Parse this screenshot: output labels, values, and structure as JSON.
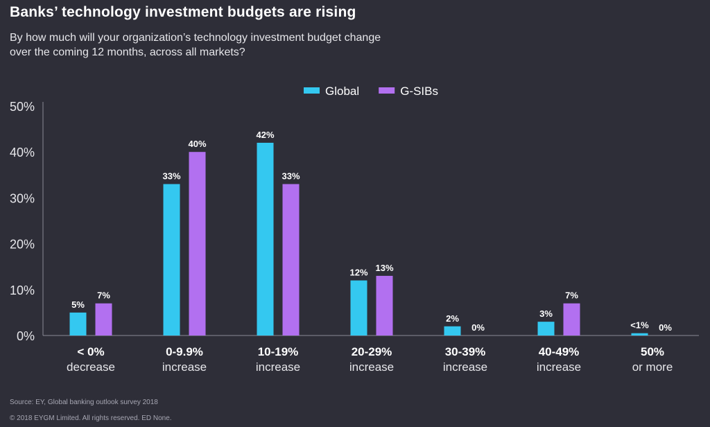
{
  "title": "Banks’ technology investment budgets are rising",
  "subtitle_lines": [
    "By how much will your organization’s technology investment budget change",
    "over the coming 12 months, across all markets?"
  ],
  "footer": {
    "source": "Source: EY, Global banking outlook survey 2018",
    "copyright": "© 2018 EYGM Limited. All rights reserved. ED None."
  },
  "colors": {
    "background": "#2e2e38",
    "global": "#34c8f0",
    "gsibs": "#b270f0"
  },
  "chart_data": {
    "type": "bar",
    "legend_position": "top-center",
    "grid": false,
    "ylim": [
      0,
      50
    ],
    "yticks": [
      0,
      10,
      20,
      30,
      40,
      50
    ],
    "ytick_labels": [
      "0%",
      "10%",
      "20%",
      "30%",
      "40%",
      "50%"
    ],
    "categories": [
      [
        "< 0%",
        "decrease"
      ],
      [
        "0-9.9%",
        "increase"
      ],
      [
        "10-19%",
        "increase"
      ],
      [
        "20-29%",
        "increase"
      ],
      [
        "30-39%",
        "increase"
      ],
      [
        "40-49%",
        "increase"
      ],
      [
        "50%",
        "or more"
      ]
    ],
    "series": [
      {
        "name": "Global",
        "color": "#34c8f0",
        "values": [
          5,
          33,
          42,
          12,
          2,
          3,
          0.5
        ],
        "labels": [
          "5%",
          "33%",
          "42%",
          "12%",
          "2%",
          "3%",
          "<1%"
        ]
      },
      {
        "name": "G-SIBs",
        "color": "#b270f0",
        "values": [
          7,
          40,
          33,
          13,
          0,
          7,
          0
        ],
        "labels": [
          "7%",
          "40%",
          "33%",
          "13%",
          "0%",
          "7%",
          "0%"
        ]
      }
    ]
  }
}
